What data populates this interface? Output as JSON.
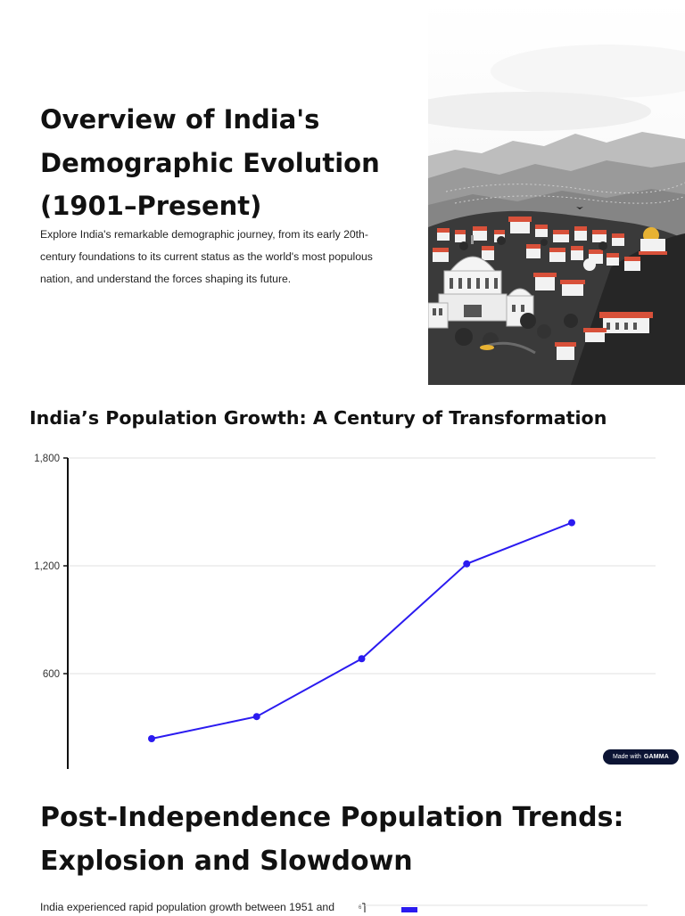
{
  "hero": {
    "title": "Overview of India's Demographic Evolution (1901–Present)",
    "description": "Explore India's remarkable demographic journey, from its early 20th-century foundations to its current status as the world's most populous nation, and understand the forces shaping its future."
  },
  "chart_section": {
    "title": "India’s Population Growth: A Century of Transformation"
  },
  "chart_data": {
    "type": "line",
    "title": "India’s Population Growth: A Century of Transformation",
    "xlabel": "",
    "ylabel": "",
    "ylim": [
      0,
      1800
    ],
    "yticks": [
      600,
      1200,
      1800
    ],
    "ytick_labels": [
      "600",
      "1,200",
      "1,800"
    ],
    "grid": true,
    "series": [
      {
        "color": "#2b1bf0",
        "values": [
          238,
          361,
          683,
          1211,
          1440
        ]
      }
    ]
  },
  "badge": {
    "prefix": "Made with",
    "brand": "GAMMA"
  },
  "section2": {
    "title": "Post-Independence Population Trends: Explosion and Slowdown",
    "description_start": "India experienced rapid population growth between 1951 and"
  },
  "mini_chart": {
    "first_tick": "6"
  },
  "colors": {
    "line": "#2b1bf0",
    "grid": "#e2e2e2",
    "axis": "#111111",
    "badge_bg": "#0c1434"
  }
}
